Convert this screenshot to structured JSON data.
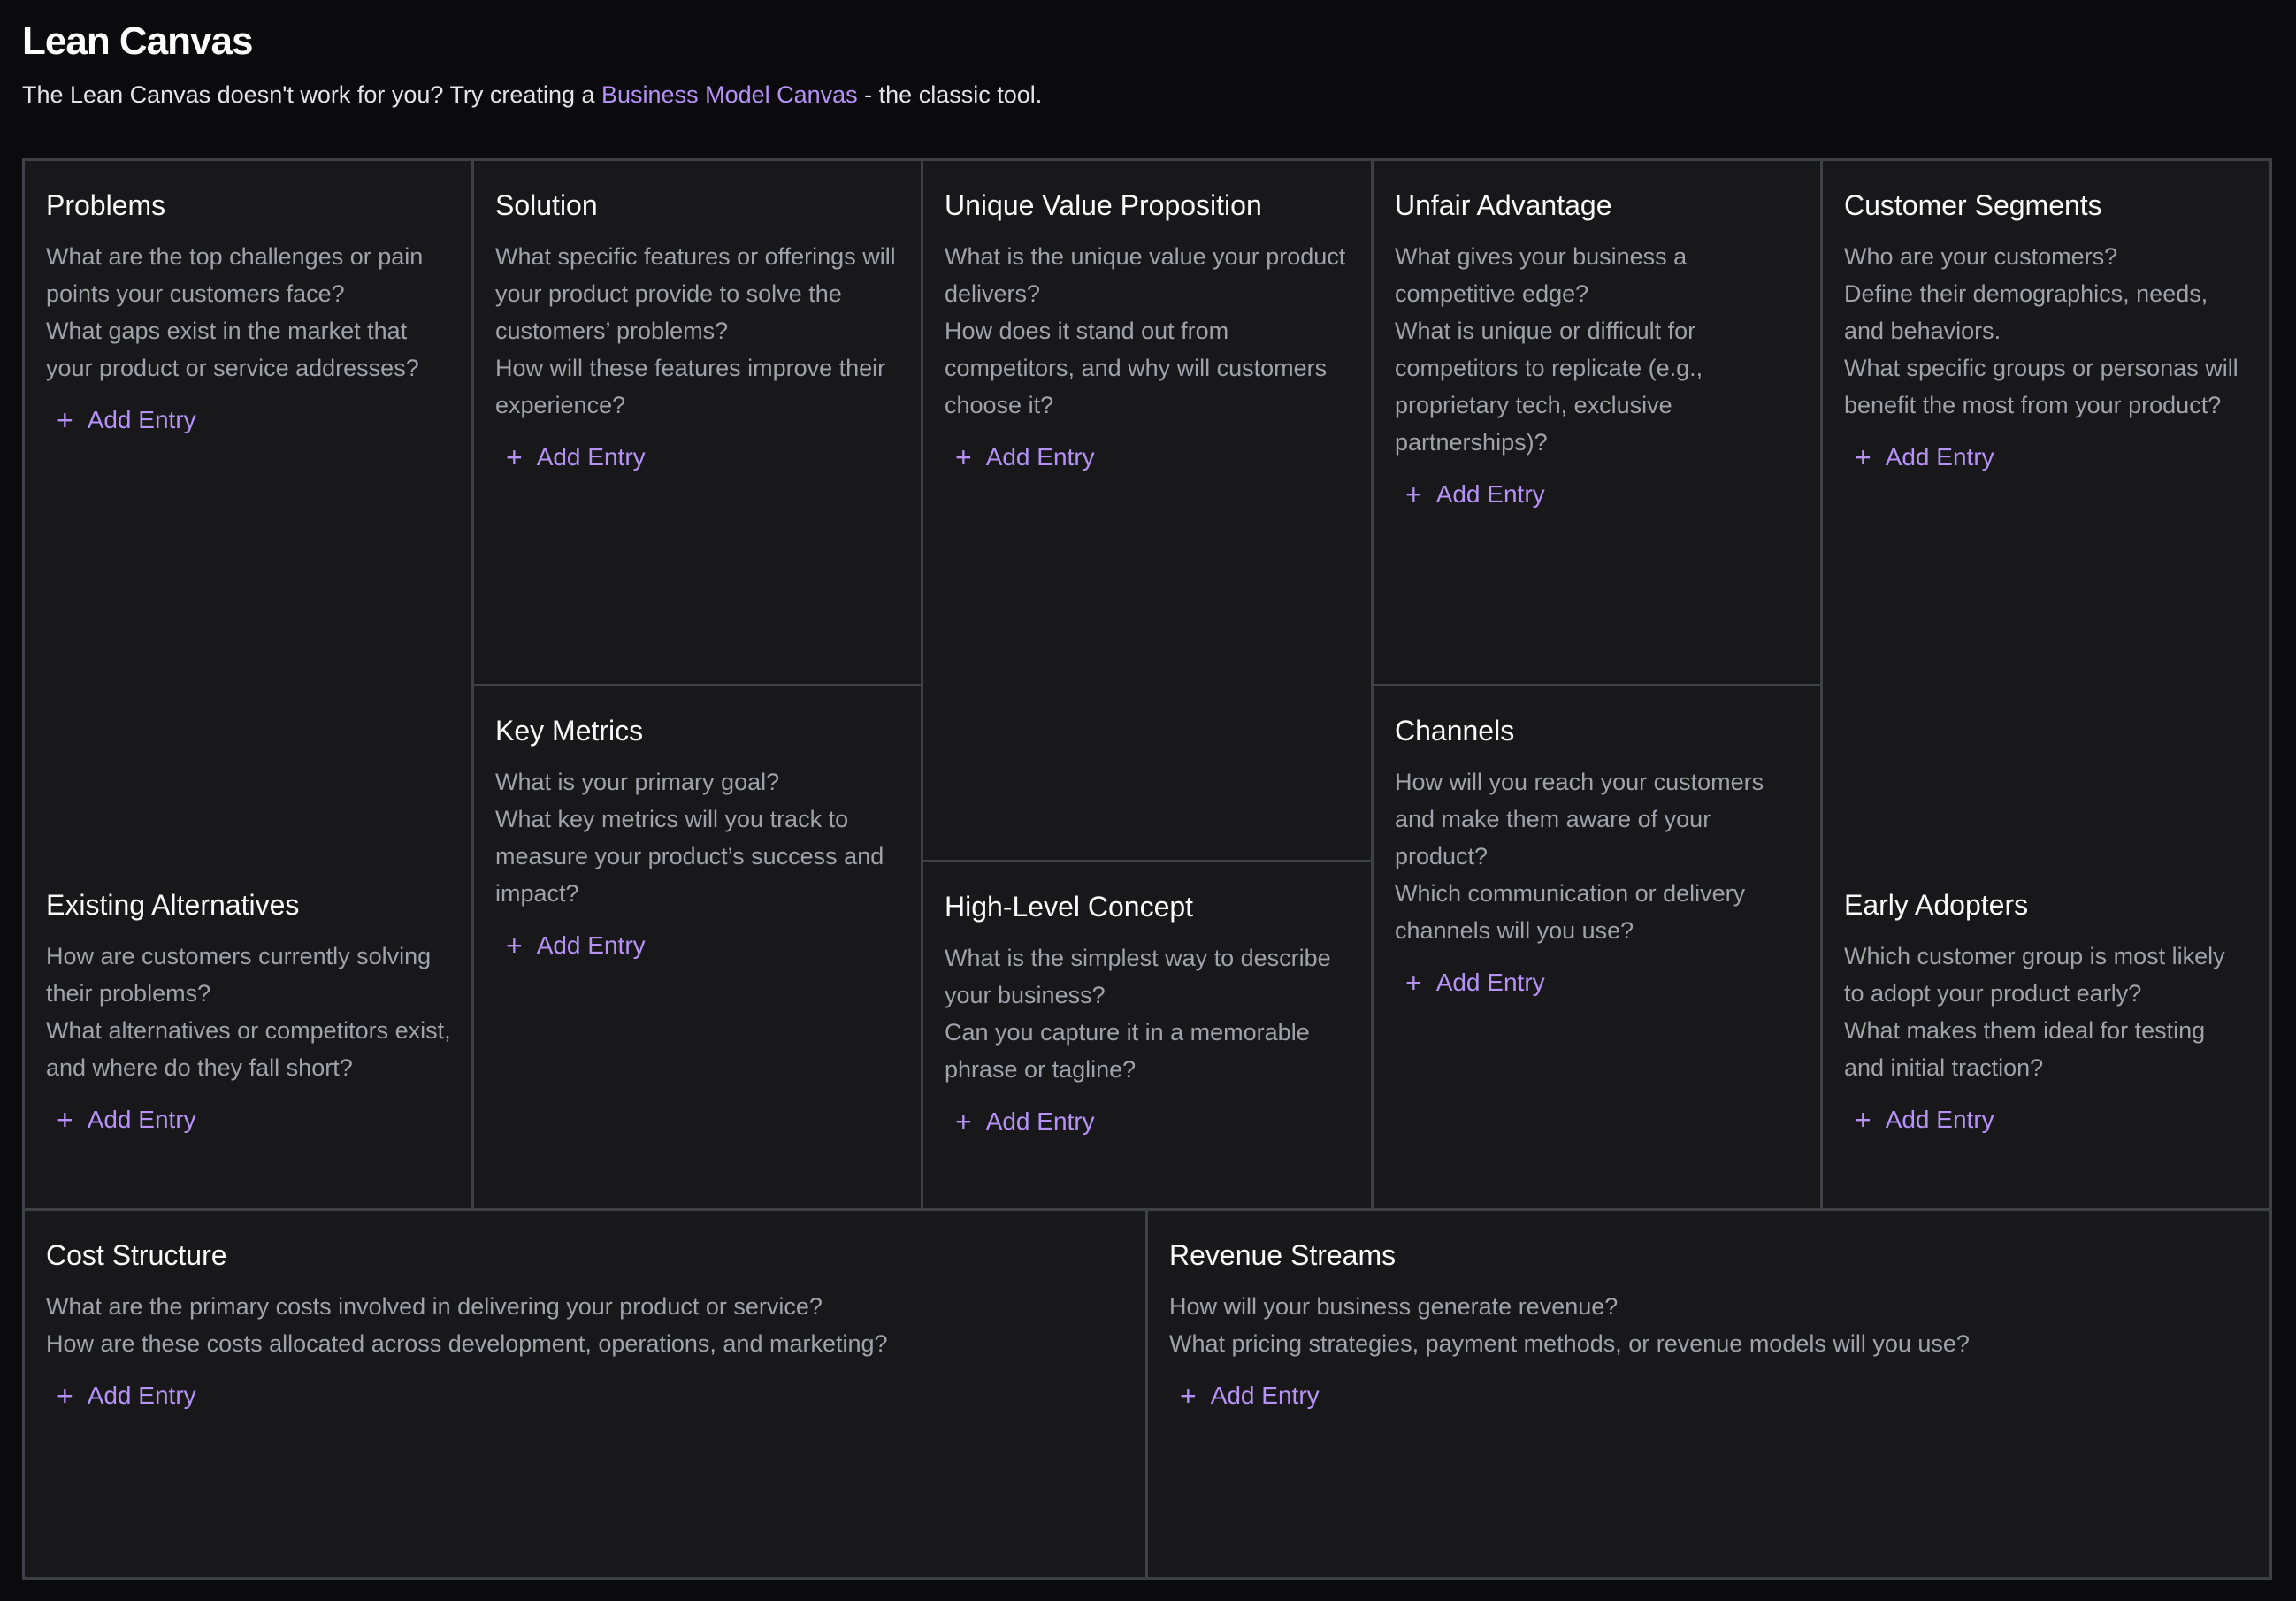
{
  "header": {
    "title": "Lean Canvas",
    "subtitle_before": "The Lean Canvas doesn't work for you? Try creating a ",
    "subtitle_link": "Business Model Canvas",
    "subtitle_after": " - the classic tool."
  },
  "colors": {
    "accent": "#b692f6",
    "background": "#0b0b0d",
    "cell": "#18181b",
    "border": "#3f3f46"
  },
  "add_entry_label": "Add Entry",
  "add_icon": "plus-icon",
  "sections": [
    {
      "id": "problems",
      "title": "Problems",
      "lines": [
        "What are the top challenges or pain points your customers face?",
        "What gaps exist in the market that your product or service addresses?"
      ]
    },
    {
      "id": "existing-alternatives",
      "title": "Existing Alternatives",
      "lines": [
        "How are customers currently solving their problems?",
        "What alternatives or competitors exist, and where do they fall short?"
      ]
    },
    {
      "id": "solution",
      "title": "Solution",
      "lines": [
        "What specific features or offerings will your product provide to solve the customers’ problems?",
        "How will these features improve their experience?"
      ]
    },
    {
      "id": "key-metrics",
      "title": "Key Metrics",
      "lines": [
        "What is your primary goal?",
        "What key metrics will you track to measure your product’s success and impact?"
      ]
    },
    {
      "id": "unique-value-proposition",
      "title": "Unique Value Proposition",
      "lines": [
        "What is the unique value your product delivers?",
        "How does it stand out from competitors, and why will customers choose it?"
      ]
    },
    {
      "id": "high-level-concept",
      "title": "High-Level Concept",
      "lines": [
        "What is the simplest way to describe your business?",
        "Can you capture it in a memorable phrase or tagline?"
      ]
    },
    {
      "id": "unfair-advantage",
      "title": "Unfair Advantage",
      "lines": [
        "What gives your business a competitive edge?",
        "What is unique or difficult for competitors to replicate (e.g., proprietary tech, exclusive partnerships)?"
      ]
    },
    {
      "id": "channels",
      "title": "Channels",
      "lines": [
        "How will you reach your customers and make them aware of your product?",
        "Which communication or delivery channels will you use?"
      ]
    },
    {
      "id": "customer-segments",
      "title": "Customer Segments",
      "lines": [
        "Who are your customers?",
        "Define their demographics, needs, and behaviors.",
        "What specific groups or personas will benefit the most from your product?"
      ]
    },
    {
      "id": "early-adopters",
      "title": "Early Adopters",
      "lines": [
        "Which customer group is most likely to adopt your product early?",
        "What makes them ideal for testing and initial traction?"
      ]
    },
    {
      "id": "cost-structure",
      "title": "Cost Structure",
      "lines": [
        "What are the primary costs involved in delivering your product or service?",
        "How are these costs allocated across development, operations, and marketing?"
      ]
    },
    {
      "id": "revenue-streams",
      "title": "Revenue Streams",
      "lines": [
        "How will your business generate revenue?",
        "What pricing strategies, payment methods, or revenue models will you use?"
      ]
    }
  ]
}
